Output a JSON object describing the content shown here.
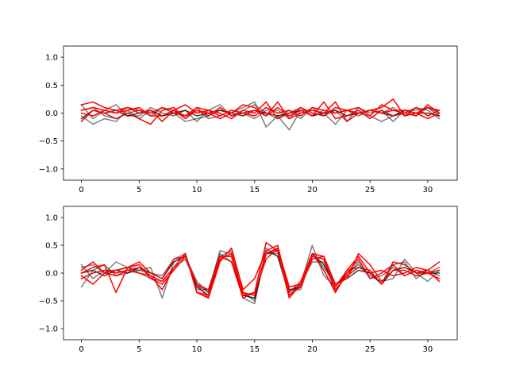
{
  "chart_data": [
    {
      "type": "line",
      "title": "",
      "xlabel": "",
      "ylabel": "",
      "xlim": [
        -1.55,
        32.55
      ],
      "ylim": [
        -1.2,
        1.2
      ],
      "xticks": [
        0,
        5,
        10,
        15,
        20,
        25,
        30
      ],
      "yticks": [
        -1.0,
        -0.5,
        0.0,
        0.5,
        1.0
      ],
      "xtick_labels": [
        "0",
        "5",
        "10",
        "15",
        "20",
        "25",
        "30"
      ],
      "ytick_labels": [
        "−1.0",
        "−0.5",
        "0.0",
        "0.5",
        "1.0"
      ],
      "grid": false,
      "x": [
        0,
        1,
        2,
        3,
        4,
        5,
        6,
        7,
        8,
        9,
        10,
        11,
        12,
        13,
        14,
        15,
        16,
        17,
        18,
        19,
        20,
        21,
        22,
        23,
        24,
        25,
        26,
        27,
        28,
        29,
        30,
        31
      ],
      "series": [
        {
          "color": "#000000",
          "alpha": 0.5,
          "values": [
            -0.05,
            -0.2,
            -0.1,
            -0.15,
            0.05,
            -0.1,
            0.05,
            -0.05,
            0.0,
            -0.15,
            -0.1,
            -0.05,
            0.05,
            0.0,
            0.1,
            0.2,
            -0.25,
            -0.05,
            -0.3,
            0.05,
            0.05,
            0.0,
            -0.2,
            0.05,
            0.0,
            -0.05,
            -0.15,
            -0.05,
            0.05,
            0.05,
            0.1,
            0.0
          ]
        },
        {
          "color": "#000000",
          "alpha": 0.5,
          "values": [
            0.15,
            -0.1,
            0.05,
            0.15,
            -0.05,
            -0.05,
            0.1,
            0.0,
            -0.05,
            0.05,
            -0.15,
            0.05,
            0.15,
            -0.05,
            0.05,
            0.15,
            0.0,
            -0.1,
            0.05,
            -0.1,
            0.1,
            -0.05,
            0.05,
            -0.15,
            0.1,
            0.0,
            0.05,
            -0.15,
            0.05,
            -0.05,
            0.1,
            -0.05
          ]
        },
        {
          "color": "#000000",
          "alpha": 0.5,
          "values": [
            0.05,
            0.1,
            -0.05,
            -0.1,
            0.0,
            0.05,
            -0.05,
            0.1,
            0.05,
            -0.1,
            0.1,
            -0.1,
            -0.05,
            0.05,
            0.0,
            -0.1,
            0.05,
            0.05,
            -0.1,
            0.1,
            -0.05,
            0.05,
            0.0,
            0.05,
            -0.05,
            0.05,
            0.0,
            0.1,
            -0.05,
            0.1,
            0.05,
            -0.1
          ]
        },
        {
          "color": "#000000",
          "alpha": 0.75,
          "values": [
            -0.1,
            0.05,
            0.0,
            0.05,
            -0.05,
            0.0,
            0.05,
            -0.05,
            0.0,
            0.05,
            -0.05,
            0.0,
            0.05,
            0.0,
            -0.05,
            0.05,
            0.0,
            -0.05,
            0.0,
            0.05,
            -0.05,
            0.0,
            0.05,
            -0.05,
            0.0,
            0.05,
            0.0,
            -0.05,
            0.05,
            0.0,
            0.0,
            -0.05
          ]
        },
        {
          "color": "#ff0000",
          "alpha": 1,
          "values": [
            0.15,
            0.2,
            0.1,
            0.05,
            0.1,
            0.05,
            0.0,
            0.1,
            0.0,
            -0.05,
            0.05,
            0.0,
            -0.1,
            0.0,
            0.15,
            0.1,
            -0.05,
            0.2,
            -0.1,
            0.0,
            0.05,
            0.0,
            0.2,
            -0.15,
            0.0,
            0.05,
            0.1,
            0.25,
            -0.05,
            0.0,
            0.1,
            0.05
          ]
        },
        {
          "color": "#ff0000",
          "alpha": 1,
          "values": [
            -0.15,
            0.05,
            0.0,
            -0.1,
            0.0,
            -0.1,
            -0.2,
            0.05,
            0.1,
            -0.1,
            0.05,
            -0.05,
            0.1,
            -0.05,
            0.0,
            0.05,
            -0.05,
            0.1,
            -0.05,
            0.05,
            -0.05,
            0.2,
            -0.1,
            -0.05,
            0.05,
            -0.1,
            0.05,
            -0.05,
            0.0,
            0.1,
            -0.05,
            0.05
          ]
        },
        {
          "color": "#ff0000",
          "alpha": 1,
          "values": [
            0.05,
            0.1,
            0.05,
            0.0,
            0.05,
            0.1,
            -0.05,
            -0.05,
            0.05,
            0.15,
            0.0,
            0.05,
            -0.05,
            0.05,
            0.0,
            -0.05,
            0.1,
            0.0,
            0.05,
            -0.05,
            0.1,
            0.05,
            0.0,
            0.05,
            0.1,
            -0.05,
            0.15,
            0.05,
            0.0,
            -0.05,
            0.15,
            0.0
          ]
        },
        {
          "color": "#ff0000",
          "alpha": 1,
          "values": [
            0.0,
            -0.05,
            0.05,
            0.0,
            0.1,
            0.0,
            0.05,
            -0.15,
            0.05,
            -0.05,
            0.1,
            0.05,
            0.0,
            -0.1,
            0.05,
            0.0,
            0.2,
            -0.1,
            0.0,
            0.1,
            0.0,
            -0.05,
            0.1,
            0.05,
            0.0,
            0.05,
            0.0,
            0.05,
            0.05,
            0.0,
            -0.1,
            0.0
          ]
        }
      ]
    },
    {
      "type": "line",
      "title": "",
      "xlabel": "",
      "ylabel": "",
      "xlim": [
        -1.55,
        32.55
      ],
      "ylim": [
        -1.2,
        1.2
      ],
      "xticks": [
        0,
        5,
        10,
        15,
        20,
        25,
        30
      ],
      "yticks": [
        -1.0,
        -0.5,
        0.0,
        0.5,
        1.0
      ],
      "xtick_labels": [
        "0",
        "5",
        "10",
        "15",
        "20",
        "25",
        "30"
      ],
      "ytick_labels": [
        "−1.0",
        "−0.5",
        "0.0",
        "0.5",
        "1.0"
      ],
      "grid": false,
      "x": [
        0,
        1,
        2,
        3,
        4,
        5,
        6,
        7,
        8,
        9,
        10,
        11,
        12,
        13,
        14,
        15,
        16,
        17,
        18,
        19,
        20,
        21,
        22,
        23,
        24,
        25,
        26,
        27,
        28,
        29,
        30,
        31
      ],
      "series": [
        {
          "color": "#000000",
          "alpha": 0.5,
          "values": [
            -0.25,
            0.05,
            0.15,
            -0.05,
            0.0,
            0.05,
            0.1,
            -0.45,
            0.2,
            0.3,
            -0.15,
            -0.35,
            0.4,
            0.35,
            -0.45,
            -0.55,
            0.45,
            0.3,
            -0.4,
            -0.2,
            0.5,
            -0.05,
            -0.25,
            0.0,
            0.15,
            -0.05,
            -0.15,
            -0.1,
            0.25,
            0.0,
            -0.15,
            0.05
          ]
        },
        {
          "color": "#000000",
          "alpha": 0.5,
          "values": [
            0.1,
            0.15,
            0.0,
            0.2,
            0.1,
            0.05,
            0.0,
            -0.05,
            0.25,
            0.35,
            -0.3,
            -0.3,
            0.35,
            0.2,
            -0.35,
            -0.5,
            0.35,
            0.35,
            -0.3,
            -0.3,
            0.35,
            0.1,
            -0.2,
            -0.05,
            0.2,
            -0.1,
            -0.05,
            0.1,
            -0.05,
            0.05,
            0.0,
            0.1
          ]
        },
        {
          "color": "#000000",
          "alpha": 0.5,
          "values": [
            0.15,
            -0.1,
            0.05,
            0.05,
            0.1,
            0.0,
            -0.1,
            -0.15,
            0.1,
            0.25,
            -0.2,
            -0.35,
            0.3,
            0.4,
            -0.4,
            -0.45,
            0.4,
            0.3,
            -0.35,
            -0.2,
            0.2,
            0.2,
            -0.35,
            0.05,
            0.1,
            0.0,
            -0.2,
            0.15,
            0.2,
            -0.1,
            0.05,
            -0.05
          ]
        },
        {
          "color": "#000000",
          "alpha": 0.75,
          "values": [
            0.0,
            0.05,
            -0.05,
            0.05,
            0.0,
            0.1,
            0.0,
            -0.1,
            0.2,
            0.3,
            -0.25,
            -0.4,
            0.3,
            0.3,
            -0.4,
            -0.45,
            0.35,
            0.4,
            -0.3,
            -0.25,
            0.35,
            0.15,
            -0.2,
            -0.1,
            0.05,
            0.0,
            -0.2,
            0.05,
            0.1,
            0.0,
            0.0,
            0.0
          ]
        },
        {
          "color": "#ff0000",
          "alpha": 1,
          "values": [
            0.05,
            0.2,
            0.0,
            0.05,
            0.1,
            0.2,
            0.0,
            -0.1,
            0.25,
            0.3,
            -0.2,
            -0.45,
            0.2,
            0.45,
            -0.3,
            -0.1,
            0.4,
            0.5,
            -0.35,
            -0.15,
            0.35,
            0.3,
            -0.25,
            0.05,
            0.3,
            0.0,
            0.05,
            -0.05,
            0.0,
            0.1,
            0.05,
            0.2
          ]
        },
        {
          "color": "#ff0000",
          "alpha": 1,
          "values": [
            -0.05,
            -0.2,
            0.0,
            -0.05,
            0.05,
            0.0,
            -0.05,
            -0.3,
            0.1,
            0.35,
            -0.35,
            -0.4,
            0.25,
            0.35,
            -0.4,
            -0.35,
            0.55,
            0.4,
            -0.45,
            -0.2,
            0.35,
            0.05,
            -0.35,
            0.0,
            0.25,
            -0.1,
            0.0,
            0.15,
            -0.05,
            0.05,
            0.0,
            -0.1
          ]
        },
        {
          "color": "#ff0000",
          "alpha": 1,
          "values": [
            0.0,
            0.1,
            0.15,
            -0.35,
            0.1,
            0.15,
            -0.1,
            -0.2,
            0.05,
            0.3,
            -0.2,
            -0.3,
            0.3,
            0.2,
            -0.45,
            -0.35,
            0.25,
            0.45,
            -0.25,
            -0.2,
            0.25,
            0.3,
            -0.2,
            -0.1,
            0.35,
            0.15,
            -0.15,
            0.05,
            0.05,
            -0.05,
            0.0,
            0.05
          ]
        },
        {
          "color": "#ff0000",
          "alpha": 1,
          "values": [
            -0.1,
            0.0,
            0.05,
            0.0,
            0.05,
            0.1,
            -0.05,
            -0.15,
            0.1,
            0.35,
            -0.35,
            -0.45,
            0.3,
            0.3,
            -0.35,
            -0.4,
            0.35,
            0.45,
            -0.4,
            -0.25,
            0.3,
            0.25,
            -0.3,
            -0.05,
            0.1,
            0.05,
            -0.2,
            0.2,
            0.15,
            0.0,
            0.05,
            -0.15
          ]
        }
      ]
    }
  ]
}
